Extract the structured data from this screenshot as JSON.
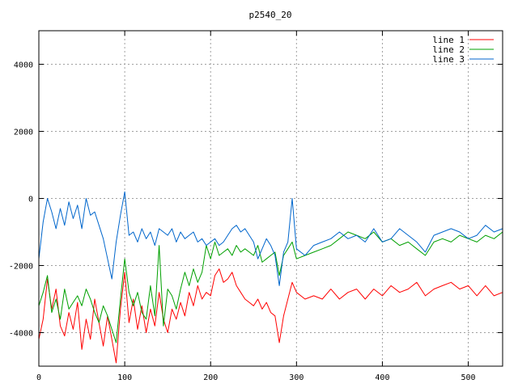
{
  "chart_data": {
    "type": "line",
    "title": "p2540_20",
    "xlabel": "",
    "ylabel": "",
    "xlim": [
      0,
      540
    ],
    "ylim": [
      -5000,
      5000
    ],
    "xticks": [
      0,
      100,
      200,
      300,
      400,
      500
    ],
    "yticks": [
      -4000,
      -2000,
      0,
      2000,
      4000
    ],
    "grid": true,
    "legend_position": "top-right",
    "series": [
      {
        "name": "line 1",
        "color": "#ff0000",
        "x": [
          0,
          5,
          10,
          15,
          20,
          25,
          30,
          35,
          40,
          45,
          50,
          55,
          60,
          65,
          70,
          75,
          80,
          85,
          90,
          95,
          100,
          105,
          110,
          115,
          120,
          125,
          130,
          135,
          140,
          145,
          150,
          155,
          160,
          165,
          170,
          175,
          180,
          185,
          190,
          195,
          200,
          205,
          210,
          215,
          220,
          225,
          230,
          235,
          240,
          245,
          250,
          255,
          260,
          265,
          270,
          275,
          280,
          285,
          290,
          295,
          300,
          310,
          320,
          330,
          340,
          350,
          360,
          370,
          380,
          390,
          400,
          410,
          420,
          430,
          440,
          450,
          460,
          470,
          480,
          490,
          500,
          510,
          520,
          530,
          540
        ],
        "values": [
          -4200,
          -3600,
          -2400,
          -3300,
          -2700,
          -3800,
          -4100,
          -3400,
          -3900,
          -3100,
          -4500,
          -3600,
          -4200,
          -3000,
          -3700,
          -4400,
          -3500,
          -4200,
          -4900,
          -3300,
          -2200,
          -3700,
          -3000,
          -3900,
          -3200,
          -4000,
          -3300,
          -3800,
          -2800,
          -3600,
          -4000,
          -3300,
          -3600,
          -3100,
          -3500,
          -2800,
          -3200,
          -2600,
          -3000,
          -2800,
          -2900,
          -2300,
          -2100,
          -2500,
          -2400,
          -2200,
          -2600,
          -2800,
          -3000,
          -3100,
          -3200,
          -3000,
          -3300,
          -3100,
          -3400,
          -3500,
          -4300,
          -3500,
          -3000,
          -2500,
          -2800,
          -3000,
          -2900,
          -3000,
          -2700,
          -3000,
          -2800,
          -2700,
          -3000,
          -2700,
          -2900,
          -2600,
          -2800,
          -2700,
          -2500,
          -2900,
          -2700,
          -2600,
          -2500,
          -2700,
          -2600,
          -2900,
          -2600,
          -2900,
          -2800
        ]
      },
      {
        "name": "line 2",
        "color": "#00a000",
        "x": [
          0,
          5,
          10,
          15,
          20,
          25,
          30,
          35,
          40,
          45,
          50,
          55,
          60,
          65,
          70,
          75,
          80,
          85,
          90,
          95,
          100,
          105,
          110,
          115,
          120,
          125,
          130,
          135,
          140,
          145,
          150,
          155,
          160,
          165,
          170,
          175,
          180,
          185,
          190,
          195,
          200,
          205,
          210,
          215,
          220,
          225,
          230,
          235,
          240,
          245,
          250,
          255,
          260,
          265,
          270,
          275,
          280,
          285,
          290,
          295,
          300,
          310,
          320,
          330,
          340,
          350,
          360,
          370,
          380,
          390,
          400,
          410,
          420,
          430,
          440,
          450,
          460,
          470,
          480,
          490,
          500,
          510,
          520,
          530,
          540
        ],
        "values": [
          -3200,
          -2800,
          -2300,
          -3400,
          -3000,
          -3600,
          -2700,
          -3300,
          -3100,
          -2900,
          -3200,
          -2700,
          -3000,
          -3400,
          -3700,
          -3200,
          -3500,
          -3900,
          -4300,
          -3000,
          -1800,
          -2800,
          -3200,
          -2800,
          -3400,
          -3600,
          -2600,
          -3500,
          -1400,
          -3800,
          -2700,
          -2900,
          -3300,
          -2700,
          -2200,
          -2600,
          -2100,
          -2500,
          -2200,
          -1400,
          -1800,
          -1300,
          -1700,
          -1600,
          -1500,
          -1700,
          -1400,
          -1600,
          -1500,
          -1600,
          -1700,
          -1400,
          -1900,
          -1800,
          -1700,
          -1600,
          -2300,
          -1700,
          -1500,
          -1300,
          -1800,
          -1700,
          -1600,
          -1500,
          -1400,
          -1200,
          -1000,
          -1100,
          -1200,
          -1000,
          -1300,
          -1200,
          -1400,
          -1300,
          -1500,
          -1700,
          -1300,
          -1200,
          -1300,
          -1100,
          -1200,
          -1300,
          -1100,
          -1200,
          -1000
        ]
      },
      {
        "name": "line 3",
        "color": "#0066cc",
        "x": [
          0,
          5,
          10,
          15,
          20,
          25,
          30,
          35,
          40,
          45,
          50,
          55,
          60,
          65,
          70,
          75,
          80,
          85,
          90,
          95,
          100,
          105,
          110,
          115,
          120,
          125,
          130,
          135,
          140,
          145,
          150,
          155,
          160,
          165,
          170,
          175,
          180,
          185,
          190,
          195,
          200,
          205,
          210,
          215,
          220,
          225,
          230,
          235,
          240,
          245,
          250,
          255,
          260,
          265,
          270,
          275,
          280,
          285,
          290,
          295,
          300,
          310,
          320,
          330,
          340,
          350,
          360,
          370,
          380,
          390,
          400,
          410,
          420,
          430,
          440,
          450,
          460,
          470,
          480,
          490,
          500,
          510,
          520,
          530,
          540
        ],
        "values": [
          -1800,
          -700,
          0,
          -400,
          -900,
          -300,
          -800,
          -100,
          -600,
          -200,
          -900,
          0,
          -500,
          -400,
          -800,
          -1200,
          -1800,
          -2400,
          -1300,
          -500,
          200,
          -1100,
          -1000,
          -1300,
          -900,
          -1200,
          -1000,
          -1400,
          -900,
          -1000,
          -1100,
          -900,
          -1300,
          -1000,
          -1200,
          -1100,
          -1000,
          -1300,
          -1200,
          -1400,
          -1300,
          -1200,
          -1400,
          -1300,
          -1100,
          -900,
          -800,
          -1000,
          -900,
          -1100,
          -1300,
          -1800,
          -1500,
          -1200,
          -1400,
          -1700,
          -2600,
          -1600,
          -1300,
          0,
          -1500,
          -1700,
          -1400,
          -1300,
          -1200,
          -1000,
          -1200,
          -1100,
          -1300,
          -900,
          -1300,
          -1200,
          -900,
          -1100,
          -1300,
          -1600,
          -1100,
          -1000,
          -900,
          -1000,
          -1200,
          -1100,
          -800,
          -1000,
          -900
        ]
      }
    ]
  }
}
